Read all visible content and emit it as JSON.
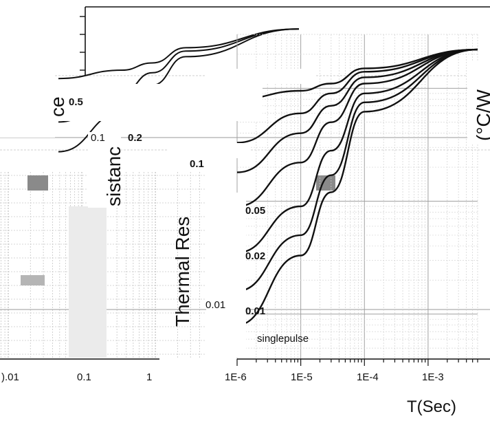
{
  "chart_data": {
    "type": "line",
    "title": "",
    "xlabel": "T(Sec)",
    "ylabel": "Thermal Resistance (°C/W)",
    "ylabel_fragments": {
      "left": "ce",
      "mid": "sistanc",
      "main": "Thermal Res",
      "right": "(°C/W"
    },
    "x_scale": "log",
    "y_scale": "log",
    "xlim": [
      1e-06,
      0.006
    ],
    "ylim": [
      0.004,
      3.0
    ],
    "x_tick_labels": [
      "1E-6",
      "1E-5",
      "1E-4",
      "1E-3"
    ],
    "x_tick_labels_left_panel": [
      ").01",
      "0.1",
      "1"
    ],
    "y_tick_labels": [
      "0.01"
    ],
    "grid": true,
    "series": [
      {
        "name": "0.5",
        "x": [
          1e-06,
          1e-05,
          3e-05,
          0.0001,
          0.006
        ],
        "y": [
          0.8,
          0.95,
          1.1,
          1.5,
          2.2
        ]
      },
      {
        "name": "0.2",
        "x": [
          1e-06,
          1e-05,
          3e-05,
          0.0001,
          0.006
        ],
        "y": [
          0.33,
          0.6,
          0.9,
          1.4,
          2.2
        ]
      },
      {
        "name": "0.1",
        "x": [
          1e-06,
          1e-05,
          3e-05,
          0.0001,
          0.006
        ],
        "y": [
          0.18,
          0.4,
          0.7,
          1.25,
          2.2
        ]
      },
      {
        "name": "0.05",
        "x": [
          1e-06,
          1e-05,
          3e-05,
          0.0001,
          0.006
        ],
        "y": [
          0.09,
          0.22,
          0.5,
          1.1,
          2.2
        ]
      },
      {
        "name": "0.02",
        "x": [
          1e-06,
          1e-05,
          3e-05,
          0.0001,
          0.006
        ],
        "y": [
          0.035,
          0.09,
          0.28,
          0.9,
          2.2
        ]
      },
      {
        "name": "0.01",
        "x": [
          1e-06,
          1e-05,
          3e-05,
          0.0001,
          0.006
        ],
        "y": [
          0.016,
          0.05,
          0.17,
          0.75,
          2.2
        ]
      },
      {
        "name": "singlepulse",
        "x": [
          1e-06,
          1e-05,
          3e-05,
          0.0001,
          0.006
        ],
        "y": [
          0.008,
          0.033,
          0.12,
          0.62,
          2.2
        ]
      }
    ]
  }
}
